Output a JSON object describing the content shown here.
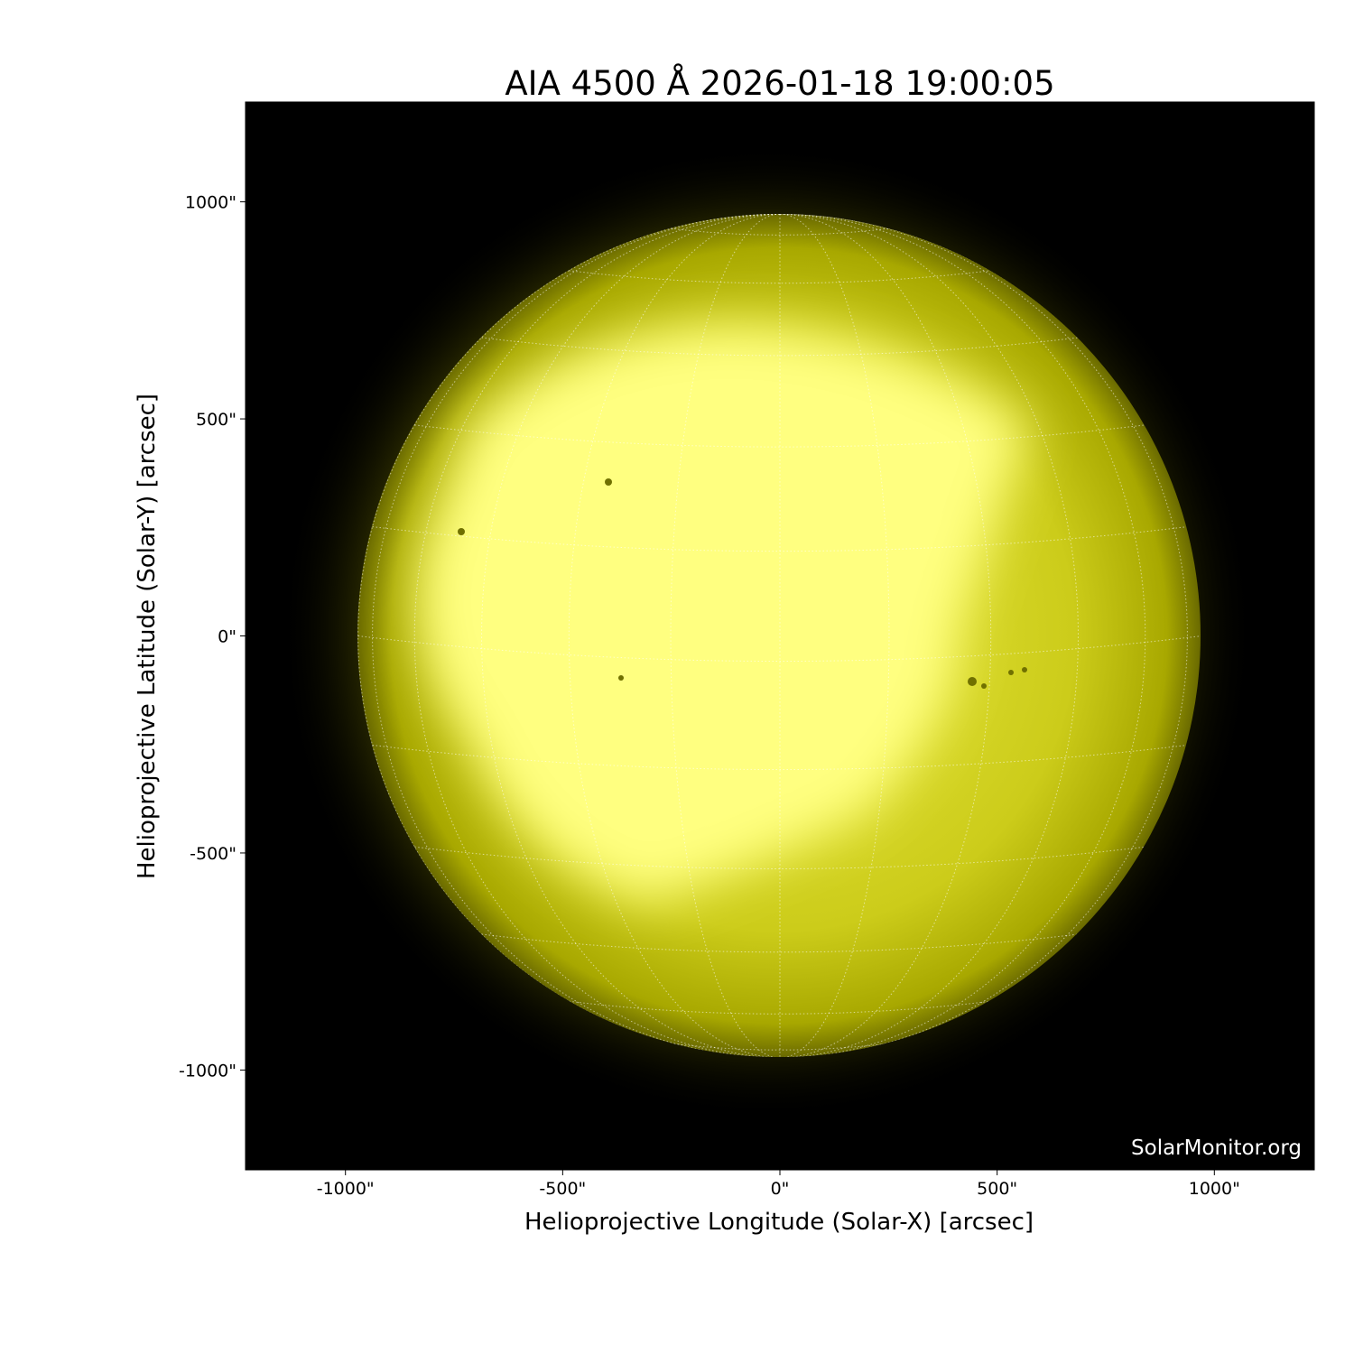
{
  "chart_data": {
    "type": "image",
    "title": "AIA 4500 Å 2026-01-18 19:00:05",
    "xlabel": "Helioprojective Longitude (Solar-X) [arcsec]",
    "ylabel": "Helioprojective Latitude (Solar-Y) [arcsec]",
    "xlim": [
      -1230,
      1230
    ],
    "ylim": [
      -1230,
      1230
    ],
    "xticks": [
      -1000,
      -500,
      0,
      500,
      1000
    ],
    "yticks": [
      -1000,
      -500,
      0,
      500,
      1000
    ],
    "xtick_labels": [
      "-1000\"",
      "-500\"",
      "0\"",
      "500\"",
      "1000\""
    ],
    "ytick_labels": [
      "-1000\"",
      "-500\"",
      "0\"",
      "500\"",
      "1000\""
    ],
    "solar_radius_arcsec": 971,
    "grid": "heliographic, 15° spacing, dotted white",
    "colormap": "yellow (black to pale yellow)",
    "colors": {
      "background": "#000000",
      "disk_dim": "#b8b800",
      "disk_bright": "#ffff80",
      "grid": "#ffffff"
    },
    "watermark": "SolarMonitor.org"
  }
}
